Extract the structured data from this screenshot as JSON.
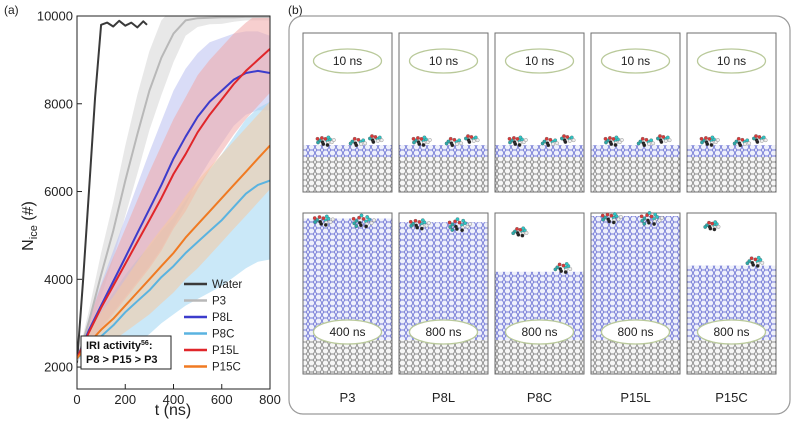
{
  "panel_a_label": "(a)",
  "panel_b_label": "(b)",
  "chart_data": {
    "type": "line",
    "xlabel": "t (ns)",
    "ylabel_main": "N",
    "ylabel_sub": "ice",
    "ylabel_suffix": " (#)",
    "xlim": [
      0,
      800
    ],
    "ylim": [
      1500,
      10000
    ],
    "xticks": [
      0,
      200,
      400,
      600,
      800
    ],
    "yticks": [
      2000,
      4000,
      6000,
      8000,
      10000
    ],
    "legend_position": "bottom-right",
    "annotation": {
      "line1": "IRI activity",
      "superscript": "56",
      "line1_suffix": ":",
      "line2": "P8 > P15 > P3"
    },
    "series": [
      {
        "name": "Water",
        "color": "#3a3a3a",
        "band_color": "",
        "x": [
          0,
          25,
          50,
          75,
          100,
          125,
          150,
          175,
          200,
          225,
          250,
          275,
          290
        ],
        "y": [
          2100,
          3950,
          6050,
          8150,
          9800,
          9850,
          9760,
          9890,
          9780,
          9850,
          9740,
          9880,
          9800
        ],
        "band_width": []
      },
      {
        "name": "P3",
        "color": "#b8b8b8",
        "band_color": "#d6d6d6",
        "x": [
          0,
          50,
          100,
          150,
          200,
          250,
          300,
          350,
          400,
          450,
          500,
          550,
          600,
          650,
          700,
          750,
          800
        ],
        "y": [
          2150,
          3050,
          4100,
          5100,
          6250,
          7300,
          8300,
          9050,
          9600,
          9900,
          9950,
          9960,
          9970,
          9970,
          9980,
          9980,
          9980
        ],
        "band_width": [
          0,
          260,
          500,
          650,
          800,
          900,
          900,
          850,
          650,
          350,
          200,
          150,
          150,
          100,
          80,
          80,
          80
        ]
      },
      {
        "name": "P8L",
        "color": "#3c3ccc",
        "band_color": "#b9bff0",
        "x": [
          0,
          50,
          100,
          150,
          200,
          250,
          300,
          350,
          400,
          450,
          500,
          550,
          600,
          650,
          700,
          750,
          800
        ],
        "y": [
          2200,
          2850,
          3400,
          3950,
          4500,
          5050,
          5600,
          6150,
          6750,
          7250,
          7700,
          8050,
          8300,
          8550,
          8700,
          8750,
          8700
        ],
        "band_width": [
          0,
          300,
          500,
          700,
          900,
          1100,
          1300,
          1450,
          1550,
          1550,
          1450,
          1350,
          1200,
          1050,
          950,
          900,
          850
        ]
      },
      {
        "name": "P8C",
        "color": "#5ab3e0",
        "band_color": "#9fd6f2",
        "x": [
          0,
          50,
          100,
          150,
          200,
          250,
          300,
          350,
          400,
          450,
          500,
          550,
          600,
          650,
          700,
          750,
          800
        ],
        "y": [
          2200,
          2450,
          2700,
          2950,
          3250,
          3500,
          3750,
          4050,
          4300,
          4600,
          4850,
          5100,
          5350,
          5650,
          5950,
          6150,
          6250
        ],
        "band_width": [
          0,
          350,
          600,
          750,
          850,
          950,
          1000,
          1050,
          1100,
          1200,
          1300,
          1400,
          1500,
          1600,
          1700,
          1750,
          1800
        ]
      },
      {
        "name": "P15L",
        "color": "#e0262a",
        "band_color": "#f0a8a8",
        "x": [
          0,
          50,
          100,
          150,
          200,
          250,
          300,
          350,
          400,
          450,
          500,
          550,
          600,
          650,
          700,
          750,
          800
        ],
        "y": [
          2200,
          2800,
          3350,
          3850,
          4350,
          4850,
          5350,
          5850,
          6400,
          6850,
          7350,
          7750,
          8100,
          8450,
          8750,
          9000,
          9250
        ],
        "band_width": [
          0,
          300,
          500,
          650,
          800,
          950,
          1100,
          1200,
          1250,
          1300,
          1300,
          1250,
          1200,
          1150,
          1100,
          1050,
          1000
        ]
      },
      {
        "name": "P15C",
        "color": "#f07a22",
        "band_color": "#f5c8a0",
        "x": [
          0,
          50,
          100,
          150,
          200,
          250,
          300,
          350,
          400,
          450,
          500,
          550,
          600,
          650,
          700,
          750,
          800
        ],
        "y": [
          2200,
          2550,
          2850,
          3100,
          3400,
          3700,
          4000,
          4300,
          4600,
          4950,
          5250,
          5550,
          5850,
          6150,
          6450,
          6750,
          7050
        ],
        "band_width": [
          0,
          250,
          400,
          500,
          600,
          700,
          800,
          850,
          900,
          950,
          1000,
          1000,
          1000,
          1000,
          1000,
          1000,
          1000
        ]
      }
    ]
  },
  "panel_b": {
    "top_row": [
      {
        "system": "P3",
        "time": "10 ns"
      },
      {
        "system": "P8L",
        "time": "10 ns"
      },
      {
        "system": "P8C",
        "time": "10 ns"
      },
      {
        "system": "P15L",
        "time": "10 ns"
      },
      {
        "system": "P15C",
        "time": "10 ns"
      }
    ],
    "bottom_row": [
      {
        "system": "P3",
        "time": "400 ns",
        "ice_fraction": 0.98
      },
      {
        "system": "P8L",
        "time": "800 ns",
        "ice_fraction": 0.95
      },
      {
        "system": "P8C",
        "time": "800 ns",
        "ice_fraction": 0.55
      },
      {
        "system": "P15L",
        "time": "800 ns",
        "ice_fraction": 1.0
      },
      {
        "system": "P15C",
        "time": "800 ns",
        "ice_fraction": 0.6
      }
    ],
    "labels": [
      "P3",
      "P8L",
      "P8C",
      "P15L",
      "P15C"
    ]
  }
}
